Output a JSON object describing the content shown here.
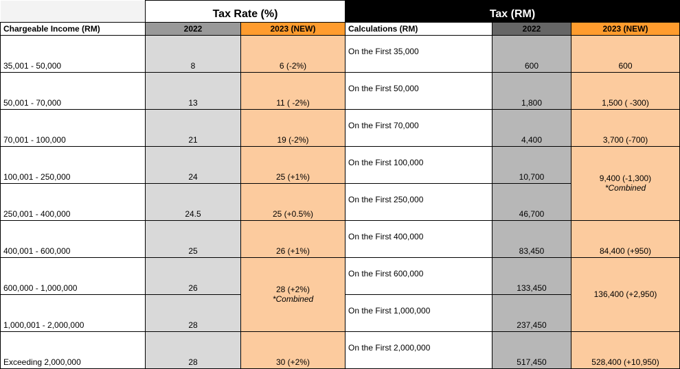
{
  "headers": {
    "tax_rate": "Tax Rate (%)",
    "tax_rm": "Tax (RM)",
    "chargeable_income": "Chargeable Income (RM)",
    "y2022": "2022",
    "y2023": "2023 (NEW)",
    "calculations": "Calculations (RM)"
  },
  "rows": [
    {
      "income": "35,001 - 50,000",
      "rate2022": "8",
      "rate2023": "6 (-2%)",
      "calc": "On the First 35,000",
      "tax2022": "600",
      "tax2023": "600"
    },
    {
      "income": "50,001 - 70,000",
      "rate2022": "13",
      "rate2023": "11 ( -2%)",
      "calc": "On the First 50,000",
      "tax2022": "1,800",
      "tax2023": "1,500 ( -300)"
    },
    {
      "income": "70,001 - 100,000",
      "rate2022": "21",
      "rate2023": "19 (-2%)",
      "calc": "On the First 70,000",
      "tax2022": "4,400",
      "tax2023": "3,700 (-700)"
    },
    {
      "income": "100,001 - 250,000",
      "rate2022": "24",
      "rate2023": "25 (+1%)",
      "calc": "On the First 100,000",
      "tax2022": "10,700",
      "tax2023": "9,400 (-1,300)",
      "tax2023_note": "*Combined"
    },
    {
      "income": "250,001 - 400,000",
      "rate2022": "24.5",
      "rate2023": "25 (+0.5%)",
      "calc": "On the First 250,000",
      "tax2022": "46,700"
    },
    {
      "income": "400,001 - 600,000",
      "rate2022": "25",
      "rate2023": "26 (+1%)",
      "calc": "On the First 400,000",
      "tax2022": "83,450",
      "tax2023": "84,400 (+950)"
    },
    {
      "income": "600,000 - 1,000,000",
      "rate2022": "26",
      "rate2023": "28 (+2%)",
      "rate2023_note": "*Combined",
      "calc": "On the First 600,000",
      "tax2022": "133,450",
      "tax2023": "136,400 (+2,950)"
    },
    {
      "income": "1,000,001 - 2,000,000",
      "rate2022": "28",
      "calc": "On the First 1,000,000",
      "tax2022": "237,450"
    },
    {
      "income": "Exceeding 2,000,000",
      "rate2022": "28",
      "rate2023": "30 (+2%)",
      "calc": "On the First 2,000,000",
      "tax2022": "517,450",
      "tax2023": "528,400 (+10,950)"
    }
  ],
  "colors": {
    "orange": "#ff9c2e",
    "peach": "#fccb9e",
    "light_gray": "#d9d9d9",
    "mid_gray": "#b7b7b7"
  }
}
